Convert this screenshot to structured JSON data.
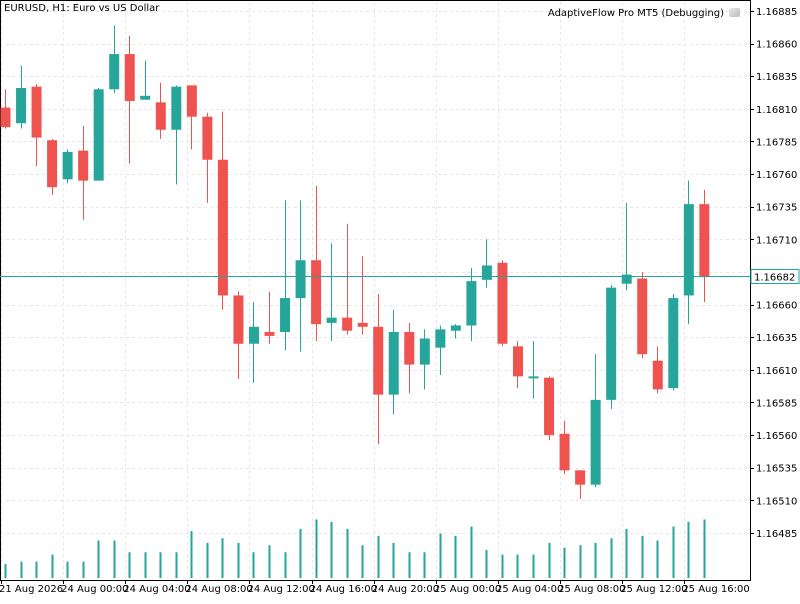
{
  "header": {
    "symbol": "EURUSD",
    "timeframe": "H1",
    "description": "Euro vs US Dollar"
  },
  "expert": {
    "label": "AdaptiveFlow Pro MT5 (Debugging)",
    "icon": "hat-icon"
  },
  "colors": {
    "bull": "#26a69a",
    "bear": "#ef5350",
    "volume": "#26a69a",
    "grid": "#e7e7e7",
    "price_line": "#26a69a",
    "price_tag_bg": "#ffffff"
  },
  "chart_data": {
    "type": "candlestick",
    "symbol": "EURUSD",
    "timeframe": "H1",
    "current_price": 1.16682,
    "ylim": [
      1.16475,
      1.16885
    ],
    "y_ticks": [
      "1.16885",
      "1.16860",
      "1.16835",
      "1.16810",
      "1.16785",
      "1.16760",
      "1.16735",
      "1.16710",
      "1.16685",
      "1.16660",
      "1.16635",
      "1.16610",
      "1.16585",
      "1.16560",
      "1.16535",
      "1.16510",
      "1.16485"
    ],
    "x_ticks": [
      "21 Aug 2026",
      "24 Aug 00:00",
      "24 Aug 04:00",
      "24 Aug 08:00",
      "24 Aug 12:00",
      "24 Aug 16:00",
      "24 Aug 20:00",
      "25 Aug 00:00",
      "25 Aug 04:00",
      "25 Aug 08:00",
      "25 Aug 12:00",
      "25 Aug 16:00"
    ],
    "grid": true,
    "candles": [
      {
        "o": 1.16811,
        "h": 1.16825,
        "l": 1.16795,
        "c": 1.16796
      },
      {
        "o": 1.16799,
        "h": 1.16843,
        "l": 1.16795,
        "c": 1.16826
      },
      {
        "o": 1.16827,
        "h": 1.16829,
        "l": 1.16766,
        "c": 1.16788
      },
      {
        "o": 1.16786,
        "h": 1.16787,
        "l": 1.16744,
        "c": 1.1675
      },
      {
        "o": 1.16756,
        "h": 1.16779,
        "l": 1.16753,
        "c": 1.16777
      },
      {
        "o": 1.16778,
        "h": 1.16797,
        "l": 1.16725,
        "c": 1.16755
      },
      {
        "o": 1.16755,
        "h": 1.16826,
        "l": 1.16755,
        "c": 1.16825
      },
      {
        "o": 1.16825,
        "h": 1.16874,
        "l": 1.16822,
        "c": 1.16852
      },
      {
        "o": 1.16852,
        "h": 1.16866,
        "l": 1.16768,
        "c": 1.16816
      },
      {
        "o": 1.16817,
        "h": 1.16847,
        "l": 1.16817,
        "c": 1.1682
      },
      {
        "o": 1.16815,
        "h": 1.1683,
        "l": 1.16787,
        "c": 1.16794
      },
      {
        "o": 1.16794,
        "h": 1.16828,
        "l": 1.16752,
        "c": 1.16827
      },
      {
        "o": 1.16828,
        "h": 1.16828,
        "l": 1.16779,
        "c": 1.16804
      },
      {
        "o": 1.16804,
        "h": 1.16807,
        "l": 1.16738,
        "c": 1.16771
      },
      {
        "o": 1.16771,
        "h": 1.16808,
        "l": 1.16656,
        "c": 1.16667
      },
      {
        "o": 1.16667,
        "h": 1.1667,
        "l": 1.16603,
        "c": 1.1663
      },
      {
        "o": 1.1663,
        "h": 1.16662,
        "l": 1.166,
        "c": 1.16643
      },
      {
        "o": 1.16639,
        "h": 1.1667,
        "l": 1.1663,
        "c": 1.16636
      },
      {
        "o": 1.16639,
        "h": 1.1674,
        "l": 1.16625,
        "c": 1.16665
      },
      {
        "o": 1.16665,
        "h": 1.1674,
        "l": 1.16624,
        "c": 1.16694
      },
      {
        "o": 1.16694,
        "h": 1.16751,
        "l": 1.16632,
        "c": 1.16645
      },
      {
        "o": 1.16646,
        "h": 1.16707,
        "l": 1.16632,
        "c": 1.1665
      },
      {
        "o": 1.1665,
        "h": 1.16722,
        "l": 1.16637,
        "c": 1.1664
      },
      {
        "o": 1.16646,
        "h": 1.16697,
        "l": 1.16637,
        "c": 1.16643
      },
      {
        "o": 1.16643,
        "h": 1.16668,
        "l": 1.16553,
        "c": 1.16591
      },
      {
        "o": 1.16591,
        "h": 1.16656,
        "l": 1.16576,
        "c": 1.16639
      },
      {
        "o": 1.16639,
        "h": 1.16646,
        "l": 1.16592,
        "c": 1.16614
      },
      {
        "o": 1.16614,
        "h": 1.16641,
        "l": 1.16595,
        "c": 1.16634
      },
      {
        "o": 1.16627,
        "h": 1.16644,
        "l": 1.16606,
        "c": 1.16641
      },
      {
        "o": 1.1664,
        "h": 1.16645,
        "l": 1.16634,
        "c": 1.16644
      },
      {
        "o": 1.16644,
        "h": 1.16688,
        "l": 1.16632,
        "c": 1.16678
      },
      {
        "o": 1.16679,
        "h": 1.1671,
        "l": 1.16673,
        "c": 1.1669
      },
      {
        "o": 1.16692,
        "h": 1.16694,
        "l": 1.16628,
        "c": 1.1663
      },
      {
        "o": 1.16628,
        "h": 1.16632,
        "l": 1.16596,
        "c": 1.16605
      },
      {
        "o": 1.16605,
        "h": 1.16632,
        "l": 1.16588,
        "c": 1.16605
      },
      {
        "o": 1.16604,
        "h": 1.16605,
        "l": 1.16556,
        "c": 1.1656
      },
      {
        "o": 1.16561,
        "h": 1.16571,
        "l": 1.1653,
        "c": 1.16533
      },
      {
        "o": 1.16533,
        "h": 1.16533,
        "l": 1.16511,
        "c": 1.16522
      },
      {
        "o": 1.16522,
        "h": 1.16622,
        "l": 1.1652,
        "c": 1.16587
      },
      {
        "o": 1.16587,
        "h": 1.16675,
        "l": 1.1658,
        "c": 1.16673
      },
      {
        "o": 1.16676,
        "h": 1.16738,
        "l": 1.16671,
        "c": 1.16683
      },
      {
        "o": 1.1668,
        "h": 1.16685,
        "l": 1.16619,
        "c": 1.16622
      },
      {
        "o": 1.16617,
        "h": 1.16628,
        "l": 1.16592,
        "c": 1.16595
      },
      {
        "o": 1.16596,
        "h": 1.16668,
        "l": 1.16594,
        "c": 1.16665
      },
      {
        "o": 1.16667,
        "h": 1.16755,
        "l": 1.16645,
        "c": 1.16737
      },
      {
        "o": 1.16737,
        "h": 1.16748,
        "l": 1.16662,
        "c": 1.16681
      }
    ],
    "volumes": [
      12,
      14,
      14,
      20,
      14,
      14,
      32,
      32,
      22,
      22,
      22,
      22,
      40,
      30,
      34,
      30,
      22,
      28,
      22,
      42,
      50,
      48,
      42,
      28,
      36,
      30,
      22,
      22,
      38,
      36,
      44,
      24,
      20,
      20,
      20,
      30,
      26,
      28,
      30,
      34,
      42,
      36,
      32,
      44,
      48,
      50
    ]
  }
}
